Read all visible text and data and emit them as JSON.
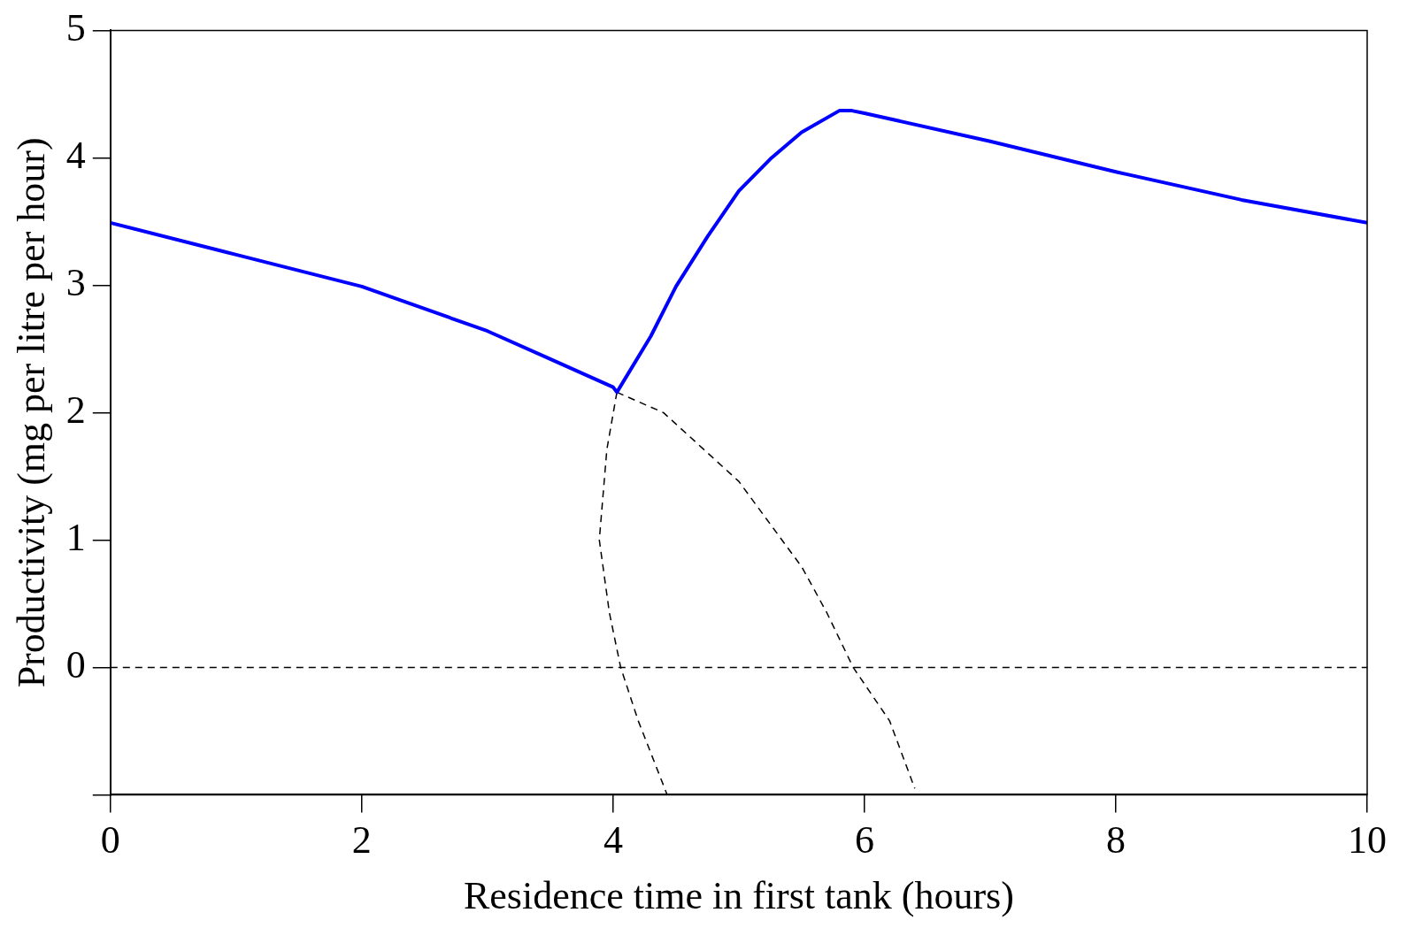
{
  "chart_data": {
    "type": "line",
    "xlabel": "Residence time in first tank (hours)",
    "ylabel": "Productivity (mg per litre per hour)",
    "xlim": [
      0,
      10
    ],
    "ylim": [
      -1,
      5
    ],
    "xticks": [
      0,
      2,
      4,
      6,
      8,
      10
    ],
    "yticks": [
      {
        "value": -1,
        "label": null
      },
      0,
      1,
      2,
      3,
      4,
      5
    ],
    "grid": false,
    "legend": false,
    "marker": "none",
    "ref_lines": [
      {
        "axis": "y",
        "value": 0,
        "color": "#000000",
        "line_style": "dashed"
      }
    ],
    "series": [
      {
        "color": "#0000ff",
        "line_style": "solid",
        "x": [
          0,
          1,
          2,
          3,
          3.5,
          4,
          4.03,
          4.3,
          4.5,
          4.75,
          5,
          5.25,
          5.5,
          5.8,
          5.9,
          6,
          7,
          8,
          9,
          10
        ],
        "values": [
          3.49,
          3.24,
          2.99,
          2.64,
          2.42,
          2.2,
          2.16,
          2.6,
          2.99,
          3.38,
          3.74,
          3.99,
          4.2,
          4.37,
          4.37,
          4.35,
          4.13,
          3.89,
          3.67,
          3.49
        ]
      },
      {
        "color": "#000000",
        "line_style": "dashed",
        "x": [
          4.03,
          3.95,
          3.89,
          3.97,
          4.06,
          4.2,
          4.43
        ],
        "values": [
          2.16,
          1.71,
          1.0,
          0.43,
          0,
          -0.42,
          -1
        ]
      },
      {
        "color": "#000000",
        "line_style": "dashed",
        "x": [
          4.03,
          4.4,
          5,
          5.5,
          5.7,
          5.91,
          6.2,
          6.4
        ],
        "values": [
          2.16,
          2.0,
          1.46,
          0.79,
          0.43,
          0,
          -0.42,
          -0.95
        ]
      }
    ]
  }
}
